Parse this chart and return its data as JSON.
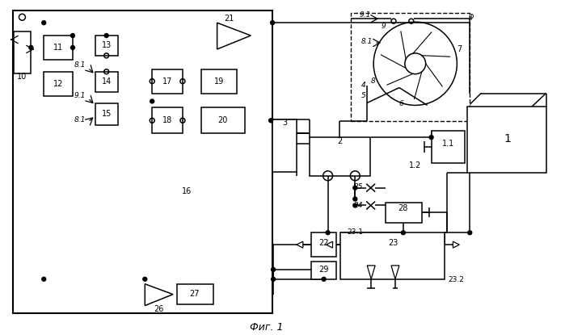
{
  "bg": "#ffffff",
  "lc": "#000000",
  "lw": 1.1,
  "fig_w": 6.99,
  "fig_h": 4.15,
  "caption": "Фиг. 1"
}
